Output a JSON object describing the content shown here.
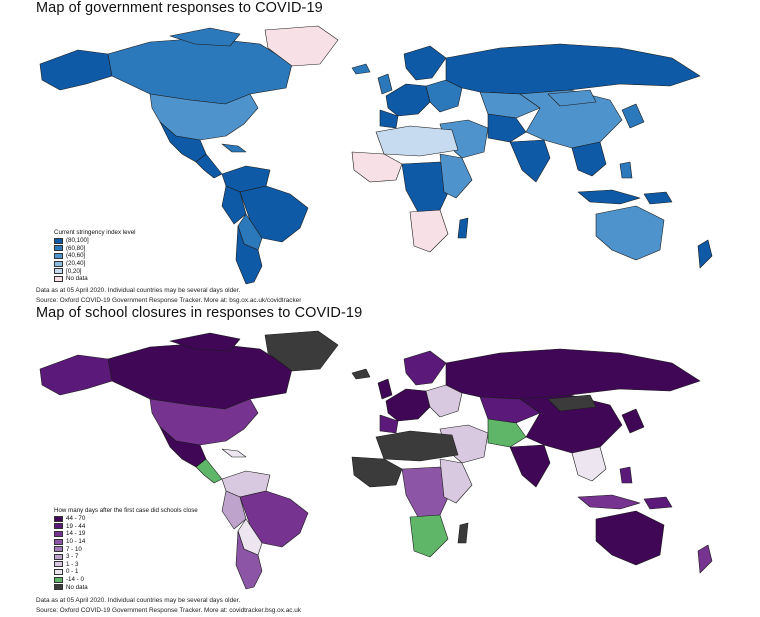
{
  "map1": {
    "title": "Map of government responses to COVID-19",
    "legend_title": "Current stringency index level",
    "legend": [
      {
        "label": "(80,100]",
        "color": "#0e5aa7"
      },
      {
        "label": "(60,80]",
        "color": "#2b78bb"
      },
      {
        "label": "(40,60]",
        "color": "#4f93cc"
      },
      {
        "label": "(20,40]",
        "color": "#8cbde0"
      },
      {
        "label": "[0,20]",
        "color": "#c6dbef"
      },
      {
        "label": "No data",
        "color": "#f7e1e6"
      }
    ],
    "note1": "Data as at 05 April 2020. Individual countries may be several days older.",
    "note2": "Source: Oxford COVID-19 Government Response Tracker. More at: bsg.ox.ac.uk/covidtracker"
  },
  "map2": {
    "title": "Map of school closures in responses to COVID-19",
    "legend_title": "How many days after the first case did schools close",
    "legend": [
      {
        "label": "44 - 70",
        "color": "#3f0755"
      },
      {
        "label": "19 - 44",
        "color": "#5b1a7a"
      },
      {
        "label": "14 - 19",
        "color": "#76338f"
      },
      {
        "label": "10 - 14",
        "color": "#8c55a5"
      },
      {
        "label": "7 - 10",
        "color": "#a47cb9"
      },
      {
        "label": "3 - 7",
        "color": "#bea3cc"
      },
      {
        "label": "1 - 3",
        "color": "#d8c8e0"
      },
      {
        "label": "0 - 1",
        "color": "#ede5f0"
      },
      {
        "label": "-14 - 0",
        "color": "#5fb568"
      },
      {
        "label": "No data",
        "color": "#3b3b3b"
      }
    ],
    "note1": "Data as at 05 April 2020. Individual countries may be several days older.",
    "note2": "Source: Oxford COVID-19 Government Response Tracker. More at: covidtracker.bsg.ox.ac.uk"
  }
}
